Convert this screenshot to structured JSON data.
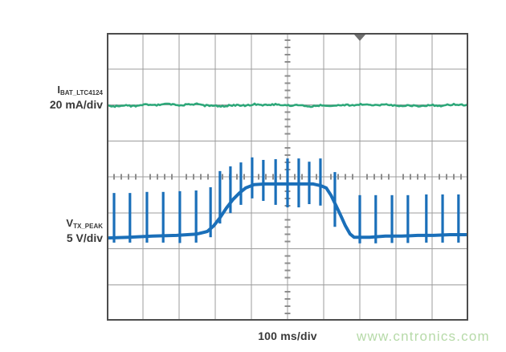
{
  "page": {
    "background": "#ffffff"
  },
  "channels": {
    "ibat": {
      "symbol": "I",
      "subscript": "BAT_LTC4124",
      "scale": "20 mA/div"
    },
    "vtx": {
      "symbol": "V",
      "subscript": "TX_PEAK",
      "scale": "5 V/div"
    }
  },
  "timebase": {
    "label": "100 ms/div"
  },
  "watermark": {
    "text": "www.cntronics.com",
    "color": "#b6daa8"
  },
  "colors": {
    "grid": "#9c9c9c",
    "border": "#4d4d4d",
    "tick": "#8d8d8d",
    "trigger": "#6f6f6f",
    "label": "#383838"
  },
  "chart_data": {
    "type": "line",
    "title": "Oscilloscope capture: battery charge current and TX peak voltage",
    "xlabel": "100 ms/div",
    "x_divisions": 10,
    "y_divisions": 8,
    "minor_ticks_per_division": 5,
    "trigger_position_div": 7,
    "grid": "on",
    "layout_hints": {
      "graticule": "10x8 scope grid, center axes carry minor tick marks",
      "trigger_marker": "gray down triangle at top edge, 7 divisions from left",
      "legend_position": "channel labels at left margin, timebase below plot"
    },
    "series": [
      {
        "name": "IBAT_LTC4124",
        "scale": "20 mA/div",
        "color": "#2ea87a",
        "shape": "flat-noisy",
        "level_div": 1.99,
        "noise_amp_div": 0.035,
        "description": "flat noisy current trace held ~2 divisions above center for full sweep"
      },
      {
        "name": "VTX_PEAK",
        "scale": "5 V/div",
        "color": "#1a6fb9",
        "shape": "baseline-with-spikes",
        "baseline_div": [
          [
            0,
            -1.7
          ],
          [
            0.6,
            -1.68
          ],
          [
            1.27,
            -1.65
          ],
          [
            1.93,
            -1.63
          ],
          [
            2.49,
            -1.59
          ],
          [
            2.78,
            -1.52
          ],
          [
            2.96,
            -1.36
          ],
          [
            3.13,
            -1.14
          ],
          [
            3.31,
            -0.87
          ],
          [
            3.49,
            -0.63
          ],
          [
            3.67,
            -0.45
          ],
          [
            3.84,
            -0.31
          ],
          [
            4.07,
            -0.22
          ],
          [
            4.38,
            -0.2
          ],
          [
            5.04,
            -0.2
          ],
          [
            5.71,
            -0.2
          ],
          [
            5.93,
            -0.25
          ],
          [
            6.07,
            -0.31
          ],
          [
            6.2,
            -0.51
          ],
          [
            6.33,
            -0.78
          ],
          [
            6.47,
            -1.07
          ],
          [
            6.6,
            -1.36
          ],
          [
            6.73,
            -1.59
          ],
          [
            6.84,
            -1.68
          ],
          [
            7.27,
            -1.68
          ],
          [
            7.71,
            -1.65
          ],
          [
            8.16,
            -1.65
          ],
          [
            8.6,
            -1.63
          ],
          [
            9.04,
            -1.63
          ],
          [
            9.49,
            -1.61
          ],
          [
            10,
            -1.61
          ]
        ],
        "spikes_div": [
          [
            0.2,
            -0.45,
            -1.83
          ],
          [
            0.64,
            -0.45,
            -1.83
          ],
          [
            1.11,
            -0.42,
            -1.83
          ],
          [
            1.56,
            -0.42,
            -1.83
          ],
          [
            2.02,
            -0.4,
            -1.84
          ],
          [
            2.47,
            -0.38,
            -1.83
          ],
          [
            2.87,
            -0.29,
            -1.68
          ],
          [
            3.13,
            0.16,
            -1.3
          ],
          [
            3.42,
            0.29,
            -1.01
          ],
          [
            3.71,
            0.4,
            -0.78
          ],
          [
            4.02,
            0.54,
            -0.6
          ],
          [
            4.33,
            0.47,
            -0.67
          ],
          [
            4.67,
            0.49,
            -0.78
          ],
          [
            5.0,
            0.51,
            -0.85
          ],
          [
            5.31,
            0.51,
            -0.85
          ],
          [
            5.6,
            0.42,
            -0.76
          ],
          [
            5.91,
            0.51,
            -0.8
          ],
          [
            6.31,
            0.13,
            -1.39
          ],
          [
            7.0,
            -0.51,
            -1.85
          ],
          [
            7.44,
            -0.51,
            -1.85
          ],
          [
            7.89,
            -0.51,
            -1.84
          ],
          [
            8.33,
            -0.51,
            -1.84
          ],
          [
            8.84,
            -0.49,
            -1.83
          ],
          [
            9.29,
            -0.49,
            -1.83
          ],
          [
            9.73,
            -0.49,
            -1.83
          ]
        ],
        "description": "wireless TX peak voltage: low baseline with periodic spikes, rises ~1.5 div to a plateau between divisions 4 and 6, then returns to baseline"
      }
    ]
  }
}
